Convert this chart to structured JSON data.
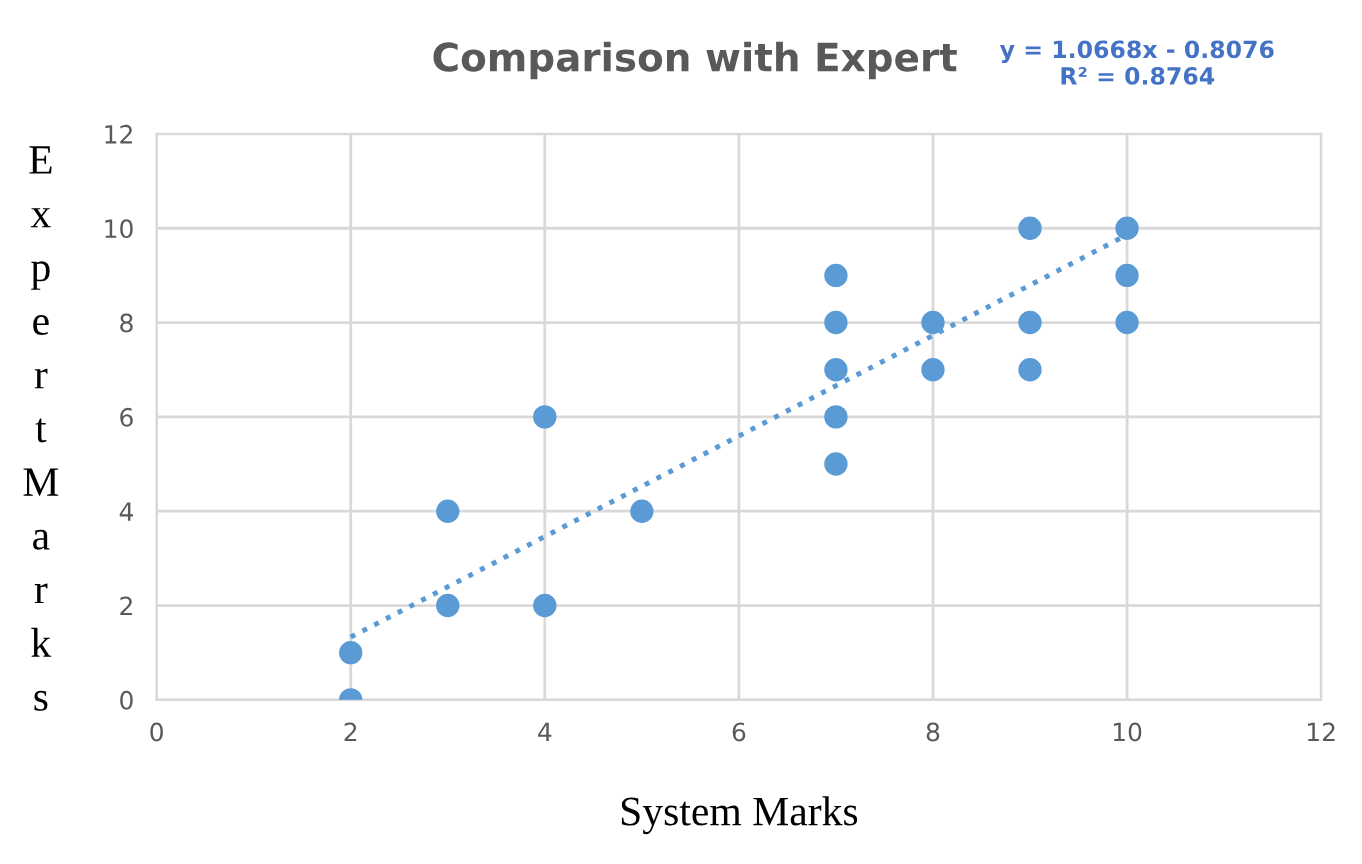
{
  "chart_data": {
    "type": "scatter",
    "title": "Comparison with Expert",
    "xlabel": "System Marks",
    "ylabel": "Expert Marks",
    "annotations": [
      "y = 1.0668x - 0.8076\nR² = 0.8764"
    ],
    "series": [
      {
        "color": "#5b9bd5",
        "x": [
          2,
          2,
          3,
          3,
          4,
          4,
          5,
          7,
          7,
          7,
          7,
          7,
          8,
          8,
          9,
          9,
          9,
          10,
          10,
          10
        ],
        "values": [
          0,
          1,
          2,
          4,
          2,
          6,
          4,
          5,
          6,
          7,
          8,
          9,
          7,
          8,
          7,
          8,
          10,
          8,
          9,
          10
        ],
        "marker": "circle"
      },
      {
        "type": "line",
        "color": "#5b9bd5",
        "x": [
          2,
          10
        ],
        "values": [
          1.33,
          9.86
        ],
        "line_style": "dotted",
        "marker": "none"
      }
    ],
    "xlim": [
      0,
      12
    ],
    "xticks": [
      0,
      2,
      4,
      6,
      8,
      10,
      12
    ],
    "ylim": [
      0,
      12
    ],
    "yticks": [
      0,
      2,
      4,
      6,
      8,
      10,
      12
    ],
    "grid": true,
    "legend": false
  }
}
